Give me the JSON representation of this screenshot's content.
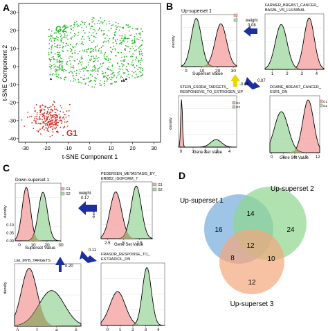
{
  "panels": {
    "A": {
      "label": "A",
      "g2_label": "G2",
      "g1_label": "G1",
      "xlabel": "t-SNE Component 1",
      "ylabel": "t-SNE Component 2",
      "colors": {
        "G1": "#cc2a1e",
        "G2": "#2bb52b"
      }
    },
    "B": {
      "label": "B",
      "main": {
        "title": "Up-superset 1",
        "xlabel": "Superset Value",
        "ylabel": "density"
      },
      "farmer": {
        "title_line1": "FARMER_BREAST_CANCER_",
        "title_line2": "BASAL_VS_LULMINAL"
      },
      "stein": {
        "title_line1": "STEIN_ESRRA_TARGETS_",
        "title_line2": "RESPONSIVE_TO_ESTROGEN_UP",
        "xlabel": "Gene Set Value",
        "ylabel": "density"
      },
      "doane": {
        "title_line1": "DOANE_BREAST_CANCER_",
        "title_line2": "ESR1_DN",
        "xlabel": "Gene Set Value"
      },
      "weights": {
        "weight_word": "weight",
        "w1": "0.08",
        "w2": "0.07",
        "w3": "-0.08"
      }
    },
    "C": {
      "label": "C",
      "main": {
        "title": "Down-superset 1",
        "xlabel": "Superset Value",
        "ylabel": "density"
      },
      "pedersen": {
        "title_line1": "PEDERSEN_METASTASIS_BY_",
        "title_line2": "ERBB2_ISOFORM_7",
        "xlabel": "Gene Set Value",
        "ylabel": "density"
      },
      "lei": {
        "title": "LEI_MYB_TARGETS",
        "ylabel": "density"
      },
      "frasor": {
        "title_line1": "FRASOR_RESPONSE_TO_",
        "title_line2": "ESTRADIOL_DN"
      },
      "weights": {
        "weight_word": "weight",
        "w1": "0.17",
        "w2": "0.11",
        "w3": "0.20"
      }
    },
    "D": {
      "label": "D",
      "set1": "Up-superset 1",
      "set2": "Up-superset 2",
      "set3": "Up-superset 3",
      "counts": {
        "only1": "16",
        "only2": "24",
        "only3": "12",
        "s12": "14",
        "s13": "8",
        "s23": "10",
        "s123": "12"
      },
      "colors": {
        "set1": "#7fb1dd",
        "set2": "#8fd68f",
        "set3": "#f3a67d"
      }
    }
  },
  "legend": {
    "g1": "G1",
    "g2": "G2"
  },
  "chart_data": [
    {
      "type": "scatter",
      "panel": "A",
      "xlabel": "t-SNE Component 1",
      "ylabel": "t-SNE Component 2",
      "xlim": [
        -33,
        33
      ],
      "ylim": [
        -42,
        35
      ],
      "xticks": [
        -30,
        -20,
        -10,
        0,
        10,
        20,
        30
      ],
      "yticks": [
        -40,
        -30,
        -20,
        -10,
        0,
        10,
        20,
        30
      ],
      "series": [
        {
          "name": "G2",
          "cluster_center": [
            3,
            8
          ],
          "cluster_spread": [
            22,
            20
          ],
          "approx_points": 700
        },
        {
          "name": "G1",
          "cluster_center": [
            -19,
            -29
          ],
          "cluster_spread": [
            7,
            7
          ],
          "approx_points": 250
        }
      ],
      "outliers": [
        [
          -18,
          -7
        ],
        [
          15,
          -8
        ],
        [
          16,
          -8
        ],
        [
          17,
          -7
        ]
      ]
    },
    {
      "type": "area",
      "panel": "B",
      "title": "Up-superset 1",
      "xlabel": "Superset Value",
      "ylabel": "density",
      "xticks": [
        0,
        10,
        20,
        30
      ],
      "xlim": [
        -3,
        32
      ],
      "series": [
        {
          "name": "G1",
          "mean": 22,
          "sd": 3.6
        },
        {
          "name": "G2",
          "mean": 6.5,
          "sd": 3.2
        }
      ]
    },
    {
      "type": "area",
      "panel": "B",
      "title": "FARMER_BREAST_CANCER_BASAL_VS_LULMINAL",
      "xticks": [
        1,
        2,
        3,
        4
      ],
      "xlim": [
        0.5,
        4.5
      ],
      "series": [
        {
          "name": "G1",
          "mean": 3.5,
          "sd": 0.35
        },
        {
          "name": "G2",
          "mean": 1.6,
          "sd": 0.4
        }
      ]
    },
    {
      "type": "area",
      "panel": "B",
      "title": "STEIN_ESRRA_TARGETS_RESPONSIVE_TO_ESTROGEN_UP",
      "xlabel": "Gene Set Value",
      "ylabel": "density",
      "xticks": [
        0,
        1,
        2,
        3,
        4
      ],
      "xlim": [
        -0.2,
        4.6
      ],
      "series": [
        {
          "name": "G1",
          "mean": 0.05,
          "sd": 0.07
        },
        {
          "name": "G2",
          "mean": 2.9,
          "sd": 0.45
        }
      ]
    },
    {
      "type": "area",
      "panel": "B",
      "title": "DOANE_BREAST_CANCER_ESR1_DN",
      "xlabel": "Gene Set Value",
      "xticks": [
        0,
        3,
        6,
        9,
        12
      ],
      "xlim": [
        -0.5,
        12.5
      ],
      "series": [
        {
          "name": "G1",
          "mean": 9.5,
          "sd": 1.4
        },
        {
          "name": "G2",
          "mean": 2.5,
          "sd": 1.8
        }
      ]
    },
    {
      "type": "area",
      "panel": "C",
      "title": "Down-superset 1",
      "xlabel": "Superset Value",
      "ylabel": "density",
      "xticks": [
        0,
        10,
        20,
        30
      ],
      "yticks": [
        0,
        0.05,
        0.1
      ],
      "xlim": [
        -3,
        30
      ],
      "series": [
        {
          "name": "G1",
          "mean": 5,
          "sd": 3
        },
        {
          "name": "G2",
          "mean": 17,
          "sd": 3.3
        }
      ]
    },
    {
      "type": "area",
      "panel": "C",
      "title": "PEDERSEN_METASTASIS_BY_ERBB2_ISOFORM_7",
      "xlabel": "Gene Set Value",
      "ylabel": "density",
      "xticks": [
        2.5,
        5.0,
        7.5
      ],
      "xlim": [
        1.5,
        9.5
      ],
      "series": [
        {
          "name": "G1",
          "mean": 3.8,
          "sd": 0.9
        },
        {
          "name": "G2",
          "mean": 7.0,
          "sd": 0.8
        }
      ]
    },
    {
      "type": "area",
      "panel": "C",
      "title": "LEI_MYB_TARGETS",
      "ylabel": "density",
      "xticks": [
        0,
        2,
        4,
        6
      ],
      "xlim": [
        -0.3,
        6.5
      ],
      "series": [
        {
          "name": "G1",
          "mean": 1.2,
          "sd": 0.8
        },
        {
          "name": "G2",
          "mean": 3.5,
          "sd": 1.3
        }
      ]
    },
    {
      "type": "area",
      "panel": "C",
      "title": "FRASOR_RESPONSE_TO_ESTRADIOL_DN",
      "xticks": [
        0,
        1,
        2,
        3,
        4
      ],
      "xlim": [
        -0.5,
        4.5
      ],
      "series": [
        {
          "name": "G1",
          "mean": 0.8,
          "sd": 0.6
        },
        {
          "name": "G2",
          "mean": 3.1,
          "sd": 0.35
        }
      ]
    }
  ]
}
